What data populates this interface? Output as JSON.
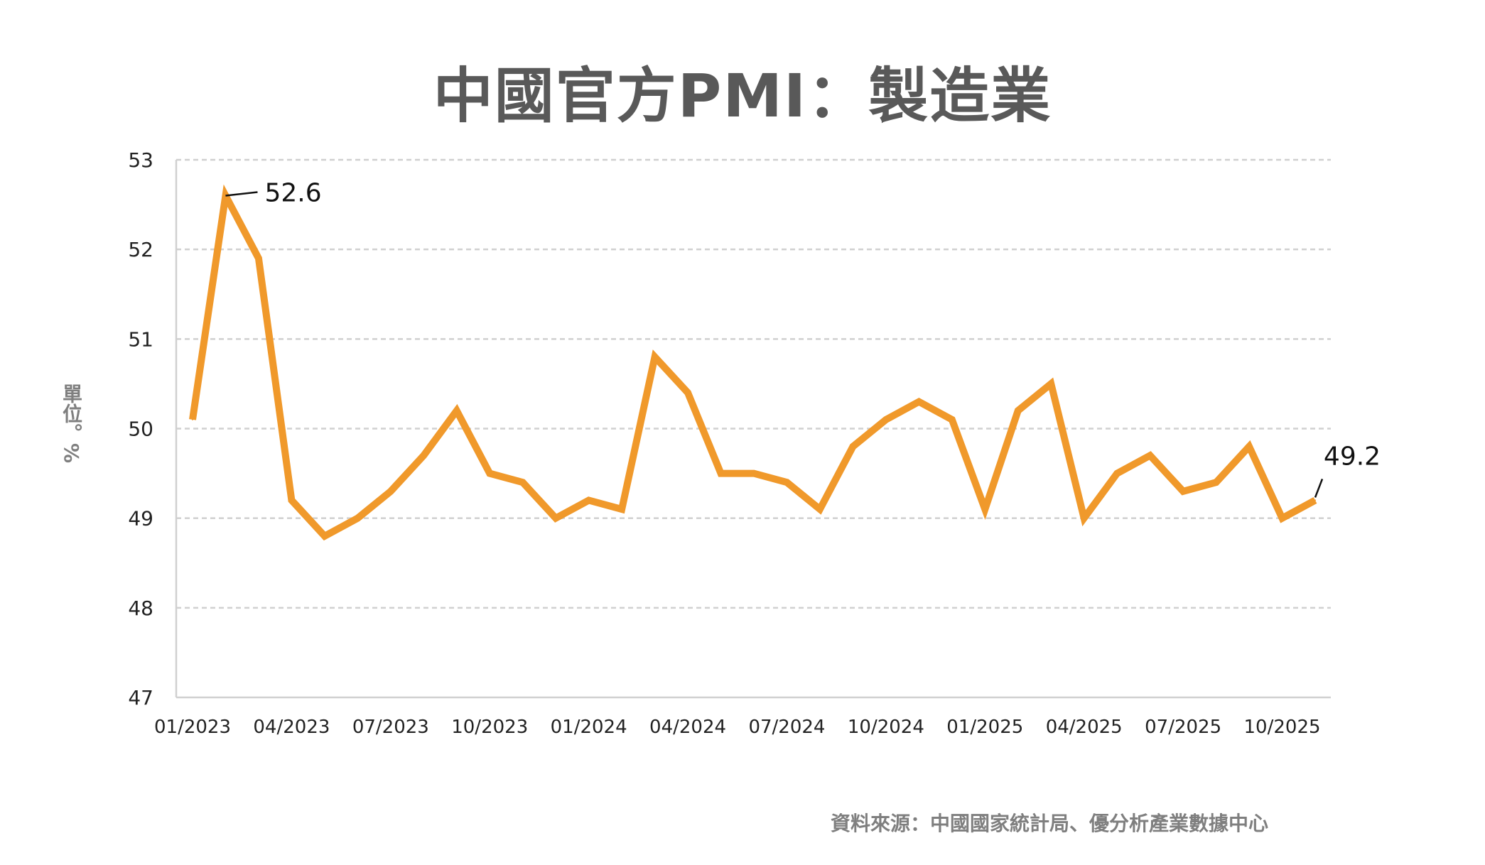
{
  "chart_data": {
    "type": "line",
    "title": "中國官方PMI：製造業",
    "ylabel": "單位。%",
    "source": "資料來源：中國國家統計局、優分析產業數據中心",
    "ylim": [
      47,
      53
    ],
    "yticks": [
      47,
      48,
      49,
      50,
      51,
      52,
      53
    ],
    "xtick_labels": [
      "01/2023",
      "04/2023",
      "07/2023",
      "10/2023",
      "01/2024",
      "04/2024",
      "07/2024",
      "10/2024",
      "01/2025",
      "04/2025",
      "07/2025",
      "10/2025"
    ],
    "grid": true,
    "color": "#F0992B",
    "x": [
      "01/2023",
      "02/2023",
      "03/2023",
      "04/2023",
      "05/2023",
      "06/2023",
      "07/2023",
      "08/2023",
      "09/2023",
      "10/2023",
      "11/2023",
      "12/2023",
      "01/2024",
      "02/2024",
      "03/2024",
      "04/2024",
      "05/2024",
      "06/2024",
      "07/2024",
      "08/2024",
      "09/2024",
      "10/2024",
      "11/2024",
      "12/2024",
      "01/2025",
      "02/2025",
      "03/2025",
      "04/2025",
      "05/2025",
      "06/2025",
      "07/2025",
      "08/2025",
      "09/2025",
      "10/2025",
      "11/2025"
    ],
    "values": [
      50.1,
      52.6,
      51.9,
      49.2,
      48.8,
      49.0,
      49.3,
      49.7,
      50.2,
      49.5,
      49.4,
      49.0,
      49.2,
      49.1,
      50.8,
      50.4,
      49.5,
      49.5,
      49.4,
      49.1,
      49.8,
      50.1,
      50.3,
      50.1,
      49.1,
      50.2,
      50.5,
      49.0,
      49.5,
      49.7,
      49.3,
      49.4,
      49.8,
      49.0,
      49.2
    ],
    "annotations": [
      {
        "x": "02/2023",
        "label": "52.6"
      },
      {
        "x": "11/2025",
        "label": "49.2"
      }
    ]
  }
}
